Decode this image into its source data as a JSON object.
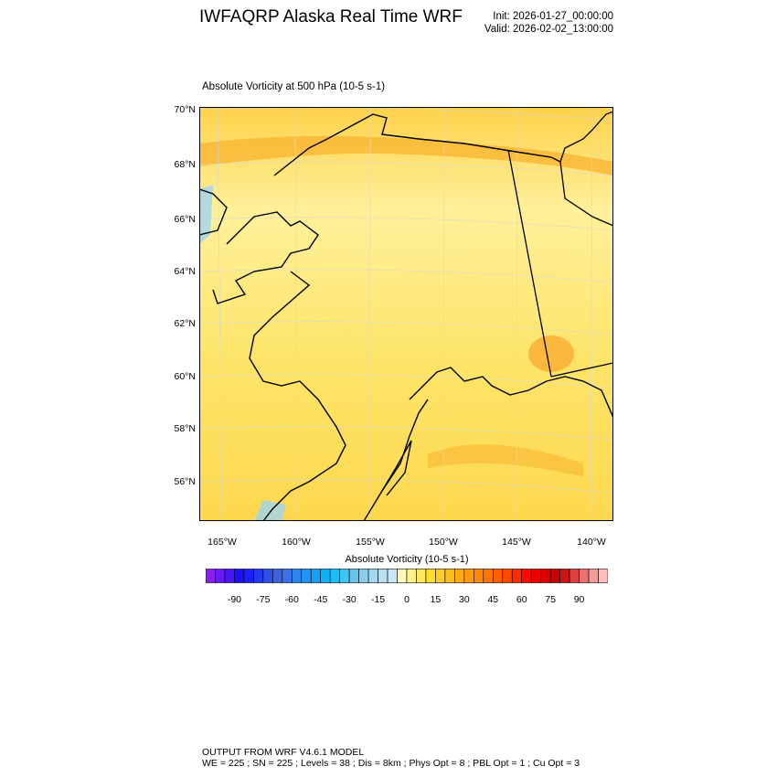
{
  "header": {
    "title": "IWFAQRP Alaska Real Time WRF",
    "init": "Init: 2026-01-27_00:00:00",
    "valid": "Valid: 2026-02-02_13:00:00"
  },
  "plot": {
    "subtitle": "Absolute Vorticity at 500 hPa   (10-5 s-1)",
    "lat_labels": [
      "70°N",
      "68°N",
      "66°N",
      "64°N",
      "62°N",
      "60°N",
      "58°N",
      "56°N"
    ],
    "lon_labels": [
      "165°W",
      "160°W",
      "155°W",
      "150°W",
      "145°W",
      "140°W"
    ],
    "field_colors": {
      "background": "#fde66a",
      "band": "#f9b733",
      "light": "#fff59a",
      "negative": "#9ed3f0"
    }
  },
  "colorbar": {
    "title": "Absolute Vorticity  (10-5 s-1)",
    "labels": [
      "-90",
      "-75",
      "-60",
      "-45",
      "-30",
      "-15",
      "0",
      "15",
      "30",
      "45",
      "60",
      "75",
      "90"
    ],
    "label_values": [
      -90,
      -75,
      -60,
      -45,
      -30,
      -15,
      0,
      15,
      30,
      45,
      60,
      75,
      90
    ],
    "range": [
      -100,
      100
    ],
    "step": 5,
    "colors": [
      "#8a1ff0",
      "#6a1af5",
      "#4a14f8",
      "#1e10ff",
      "#1a20f8",
      "#2238ee",
      "#2e4ee6",
      "#3c62df",
      "#3a72e6",
      "#2e84ee",
      "#2294f4",
      "#15a2f6",
      "#0cb2f8",
      "#1abff6",
      "#40c6f2",
      "#68c4ec",
      "#8ccdeb",
      "#a6d8ee",
      "#bcdff0",
      "#c9e6f4",
      "#fffbb8",
      "#fff28a",
      "#ffe85c",
      "#ffdd2a",
      "#ffcc22",
      "#ffbd18",
      "#ffab10",
      "#ff9a0a",
      "#ff8806",
      "#ff7504",
      "#ff6000",
      "#ff4800",
      "#ff2c00",
      "#ff0a00",
      "#ee0000",
      "#dc0000",
      "#cc0000",
      "#cc1414",
      "#dc4040",
      "#ec7070",
      "#f69a9a",
      "#ffbcbc"
    ]
  },
  "footer": {
    "line1": "OUTPUT FROM WRF V4.6.1 MODEL",
    "line2": "WE = 225 ; SN = 225 ; Levels = 38 ; Dis = 8km ; Phys Opt = 8 ; PBL Opt = 1 ; Cu Opt = 3"
  }
}
